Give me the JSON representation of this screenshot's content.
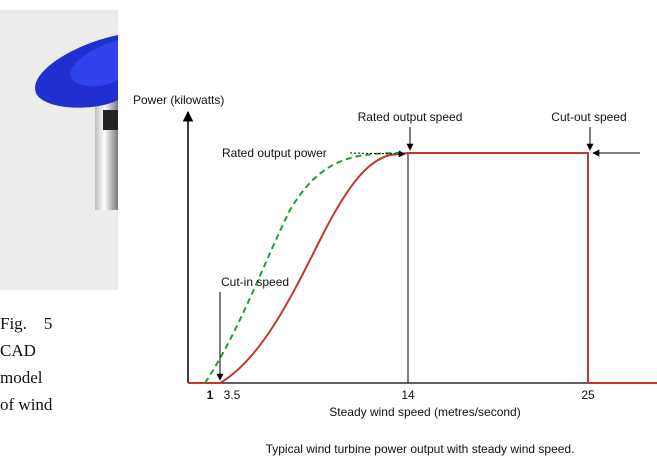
{
  "figure_caption_lines": [
    "Fig.    5",
    "CAD",
    "model",
    "of wind"
  ],
  "power_chart": {
    "y_axis_label": "Power (kilowatts)",
    "x_axis_label": "Steady wind speed (metres/second)",
    "caption": "Typical wind turbine power output with steady wind speed.",
    "annotations": {
      "rated_output_speed": "Rated output speed",
      "cut_out_speed": "Cut-out speed",
      "rated_output_power": "Rated output power",
      "cut_in_speed": "Cut-in speed"
    },
    "x_tick_labels": [
      "1",
      "3.5",
      "14",
      "25"
    ]
  }
}
